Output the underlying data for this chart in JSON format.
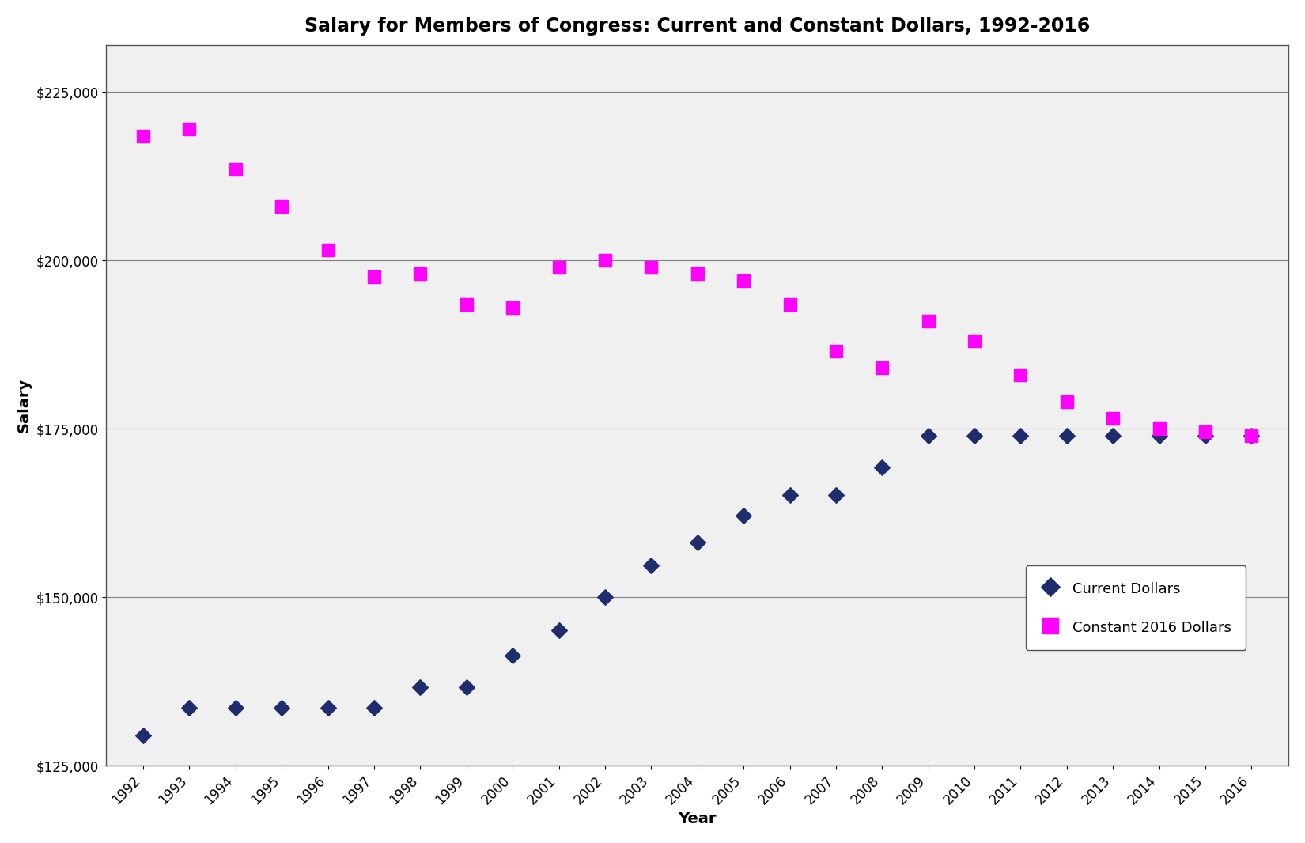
{
  "title": "Salary for Members of Congress: Current and Constant Dollars, 1992-2016",
  "years": [
    1992,
    1993,
    1994,
    1995,
    1996,
    1997,
    1998,
    1999,
    2000,
    2001,
    2002,
    2003,
    2004,
    2005,
    2006,
    2007,
    2008,
    2009,
    2010,
    2011,
    2012,
    2013,
    2014,
    2015,
    2016
  ],
  "current_dollars": [
    129500,
    133600,
    133600,
    133600,
    133600,
    133600,
    136673,
    136673,
    141300,
    145100,
    150000,
    154700,
    158100,
    162100,
    165200,
    165200,
    169300,
    174000,
    174000,
    174000,
    174000,
    174000,
    174000,
    174000,
    174000
  ],
  "constant_dollars": [
    218500,
    219500,
    213500,
    208000,
    201500,
    197500,
    198000,
    193500,
    193000,
    199000,
    200000,
    199000,
    198000,
    197000,
    193500,
    186500,
    184000,
    191000,
    188000,
    183000,
    179000,
    176500,
    175000,
    174500,
    174000
  ],
  "current_color": "#1F2D6E",
  "constant_color": "#FF00FF",
  "current_marker": "D",
  "constant_marker": "s",
  "xlabel": "Year",
  "ylabel": "Salary",
  "ylim_min": 125000,
  "ylim_max": 232000,
  "yticks": [
    125000,
    150000,
    175000,
    200000,
    225000
  ],
  "ytick_labels": [
    "$125,000",
    "$150,000",
    "$175,000",
    "$200,000",
    "$225,000"
  ],
  "legend_current": "Current Dollars",
  "legend_constant": "Constant 2016 Dollars",
  "plot_bg_color": "#F0F0F0",
  "background_color": "#FFFFFF",
  "grid_color": "#808080",
  "title_fontsize": 17,
  "axis_label_fontsize": 14,
  "tick_fontsize": 12,
  "legend_fontsize": 13
}
